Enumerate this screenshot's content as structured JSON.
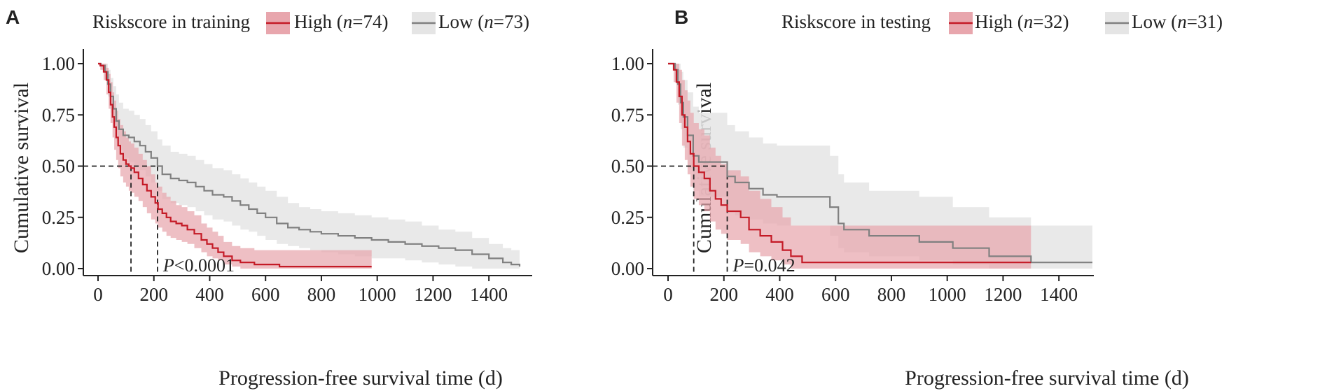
{
  "chart_data": [
    {
      "panel": "A",
      "type": "line",
      "subtype": "kaplan-meier",
      "legend_title": "Riskscore in training",
      "legend_placement": "top",
      "xlabel": "Progression-free survival time (d)",
      "ylabel": "Cumulative survival",
      "xlim": [
        0,
        1520
      ],
      "ylim": [
        0,
        1
      ],
      "xticks": [
        0,
        200,
        400,
        600,
        800,
        1000,
        1200,
        1400
      ],
      "yticks": [
        0,
        0.25,
        0.5,
        0.75,
        1
      ],
      "ytick_labels": [
        "0.00",
        "0.25",
        "0.50",
        "0.75",
        "1.00"
      ],
      "grid": false,
      "pvalue_label": "P",
      "pvalue_text": "<0.0001",
      "median_survival": [
        {
          "series": "High",
          "x": 118,
          "y": 0.5
        },
        {
          "series": "Low",
          "x": 213,
          "y": 0.5
        }
      ],
      "series": [
        {
          "name": "High",
          "legend_n": "74",
          "color": "#c41a26",
          "ci_color": "#e8a6ad",
          "x": [
            0,
            8,
            20,
            30,
            38,
            45,
            52,
            58,
            65,
            72,
            80,
            90,
            100,
            110,
            118,
            130,
            145,
            160,
            175,
            190,
            205,
            215,
            230,
            245,
            260,
            280,
            300,
            320,
            345,
            370,
            390,
            410,
            430,
            450,
            480,
            510,
            560,
            600,
            650,
            980
          ],
          "y": [
            1.0,
            0.99,
            0.96,
            0.92,
            0.86,
            0.8,
            0.74,
            0.69,
            0.64,
            0.6,
            0.56,
            0.53,
            0.51,
            0.5,
            0.49,
            0.47,
            0.44,
            0.41,
            0.38,
            0.35,
            0.32,
            0.29,
            0.27,
            0.25,
            0.23,
            0.22,
            0.21,
            0.19,
            0.17,
            0.14,
            0.12,
            0.1,
            0.08,
            0.06,
            0.04,
            0.03,
            0.02,
            0.02,
            0.01,
            0.01
          ],
          "ci_upper": [
            1.0,
            1.0,
            1.0,
            0.98,
            0.95,
            0.91,
            0.86,
            0.82,
            0.77,
            0.73,
            0.7,
            0.67,
            0.64,
            0.62,
            0.61,
            0.59,
            0.56,
            0.53,
            0.5,
            0.46,
            0.42,
            0.4,
            0.37,
            0.35,
            0.33,
            0.31,
            0.3,
            0.28,
            0.26,
            0.22,
            0.2,
            0.18,
            0.16,
            0.13,
            0.11,
            0.1,
            0.09,
            0.09,
            0.09,
            0.09
          ],
          "ci_lower": [
            1.0,
            0.97,
            0.92,
            0.85,
            0.78,
            0.71,
            0.64,
            0.58,
            0.53,
            0.49,
            0.45,
            0.42,
            0.4,
            0.38,
            0.37,
            0.35,
            0.33,
            0.3,
            0.27,
            0.24,
            0.22,
            0.2,
            0.18,
            0.16,
            0.15,
            0.14,
            0.13,
            0.12,
            0.1,
            0.08,
            0.06,
            0.05,
            0.04,
            0.02,
            0.01,
            0.0,
            0.0,
            0.0,
            0.0,
            0.0
          ]
        },
        {
          "name": "Low",
          "legend_n": "73",
          "color": "#808080",
          "ci_color": "#e5e5e5",
          "x": [
            0,
            10,
            25,
            35,
            45,
            55,
            65,
            75,
            90,
            110,
            130,
            150,
            170,
            190,
            213,
            230,
            260,
            290,
            320,
            350,
            380,
            410,
            450,
            480,
            510,
            540,
            570,
            600,
            640,
            680,
            720,
            760,
            800,
            860,
            920,
            980,
            1040,
            1100,
            1160,
            1220,
            1280,
            1340,
            1400,
            1450,
            1480,
            1510
          ],
          "y": [
            1.0,
            0.99,
            0.96,
            0.9,
            0.84,
            0.78,
            0.72,
            0.68,
            0.65,
            0.64,
            0.62,
            0.6,
            0.57,
            0.54,
            0.5,
            0.46,
            0.44,
            0.43,
            0.42,
            0.4,
            0.38,
            0.36,
            0.35,
            0.33,
            0.31,
            0.29,
            0.27,
            0.25,
            0.22,
            0.2,
            0.19,
            0.18,
            0.17,
            0.16,
            0.15,
            0.14,
            0.13,
            0.12,
            0.11,
            0.1,
            0.09,
            0.07,
            0.05,
            0.03,
            0.02,
            0.01
          ],
          "ci_upper": [
            1.0,
            1.0,
            1.0,
            0.97,
            0.93,
            0.89,
            0.85,
            0.81,
            0.78,
            0.77,
            0.75,
            0.73,
            0.7,
            0.67,
            0.63,
            0.6,
            0.57,
            0.56,
            0.55,
            0.53,
            0.51,
            0.49,
            0.48,
            0.46,
            0.44,
            0.42,
            0.4,
            0.38,
            0.35,
            0.32,
            0.3,
            0.29,
            0.28,
            0.27,
            0.26,
            0.25,
            0.24,
            0.23,
            0.21,
            0.19,
            0.18,
            0.15,
            0.12,
            0.1,
            0.09,
            0.08
          ],
          "ci_lower": [
            1.0,
            0.97,
            0.92,
            0.84,
            0.76,
            0.69,
            0.62,
            0.58,
            0.54,
            0.52,
            0.5,
            0.48,
            0.45,
            0.42,
            0.38,
            0.34,
            0.32,
            0.31,
            0.3,
            0.28,
            0.26,
            0.24,
            0.23,
            0.21,
            0.19,
            0.18,
            0.16,
            0.14,
            0.12,
            0.11,
            0.1,
            0.09,
            0.08,
            0.07,
            0.06,
            0.05,
            0.05,
            0.04,
            0.03,
            0.02,
            0.01,
            0.0,
            0.0,
            0.0,
            0.0,
            0.0
          ]
        }
      ]
    },
    {
      "panel": "B",
      "type": "line",
      "subtype": "kaplan-meier",
      "legend_title": "Riskscore in testing",
      "legend_placement": "top",
      "xlabel": "Progression-free survival time (d)",
      "ylabel": "Cumulative survival",
      "xlim": [
        0,
        1520
      ],
      "ylim": [
        0,
        1
      ],
      "xticks": [
        0,
        200,
        400,
        600,
        800,
        1000,
        1200,
        1400
      ],
      "yticks": [
        0,
        0.25,
        0.5,
        0.75,
        1
      ],
      "ytick_labels": [
        "0.00",
        "0.25",
        "0.50",
        "0.75",
        "1.00"
      ],
      "grid": false,
      "pvalue_label": "P",
      "pvalue_text": "=0.042",
      "median_survival": [
        {
          "series": "High",
          "x": 92,
          "y": 0.5
        },
        {
          "series": "Low",
          "x": 212,
          "y": 0.5
        }
      ],
      "series": [
        {
          "name": "High",
          "legend_n": "32",
          "color": "#c41a26",
          "ci_color": "#e8a6ad",
          "x": [
            0,
            20,
            30,
            40,
            50,
            60,
            70,
            80,
            92,
            110,
            130,
            150,
            170,
            190,
            212,
            260,
            290,
            330,
            370,
            410,
            440,
            480,
            500,
            1300
          ],
          "y": [
            1.0,
            0.97,
            0.91,
            0.84,
            0.75,
            0.69,
            0.62,
            0.56,
            0.5,
            0.47,
            0.44,
            0.38,
            0.34,
            0.31,
            0.28,
            0.25,
            0.19,
            0.16,
            0.13,
            0.09,
            0.06,
            0.03,
            0.03,
            0.03
          ],
          "ci_upper": [
            1.0,
            1.0,
            1.0,
            0.97,
            0.92,
            0.87,
            0.82,
            0.76,
            0.71,
            0.68,
            0.65,
            0.59,
            0.55,
            0.51,
            0.48,
            0.45,
            0.38,
            0.34,
            0.3,
            0.25,
            0.21,
            0.21,
            0.21,
            0.21
          ],
          "ci_lower": [
            1.0,
            0.91,
            0.81,
            0.71,
            0.6,
            0.53,
            0.46,
            0.4,
            0.34,
            0.31,
            0.28,
            0.23,
            0.19,
            0.17,
            0.14,
            0.12,
            0.08,
            0.06,
            0.04,
            0.02,
            0.0,
            0.0,
            0.0,
            0.0
          ]
        },
        {
          "name": "Low",
          "legend_n": "31",
          "color": "#808080",
          "ci_color": "#e5e5e5",
          "x": [
            0,
            25,
            35,
            45,
            55,
            70,
            90,
            110,
            212,
            240,
            290,
            340,
            390,
            480,
            580,
            610,
            630,
            720,
            900,
            1020,
            1150,
            1300,
            1520
          ],
          "y": [
            1.0,
            0.97,
            0.9,
            0.81,
            0.74,
            0.65,
            0.55,
            0.52,
            0.45,
            0.42,
            0.39,
            0.36,
            0.35,
            0.35,
            0.3,
            0.22,
            0.19,
            0.16,
            0.13,
            0.1,
            0.06,
            0.03,
            0.03
          ],
          "ci_upper": [
            1.0,
            1.0,
            1.0,
            0.96,
            0.92,
            0.86,
            0.79,
            0.76,
            0.7,
            0.67,
            0.64,
            0.61,
            0.6,
            0.6,
            0.55,
            0.46,
            0.42,
            0.38,
            0.35,
            0.3,
            0.25,
            0.21,
            0.21
          ],
          "ci_lower": [
            1.0,
            0.91,
            0.8,
            0.68,
            0.59,
            0.49,
            0.38,
            0.35,
            0.28,
            0.26,
            0.24,
            0.22,
            0.21,
            0.21,
            0.16,
            0.1,
            0.08,
            0.06,
            0.04,
            0.02,
            0.0,
            0.0,
            0.0
          ]
        }
      ]
    }
  ]
}
